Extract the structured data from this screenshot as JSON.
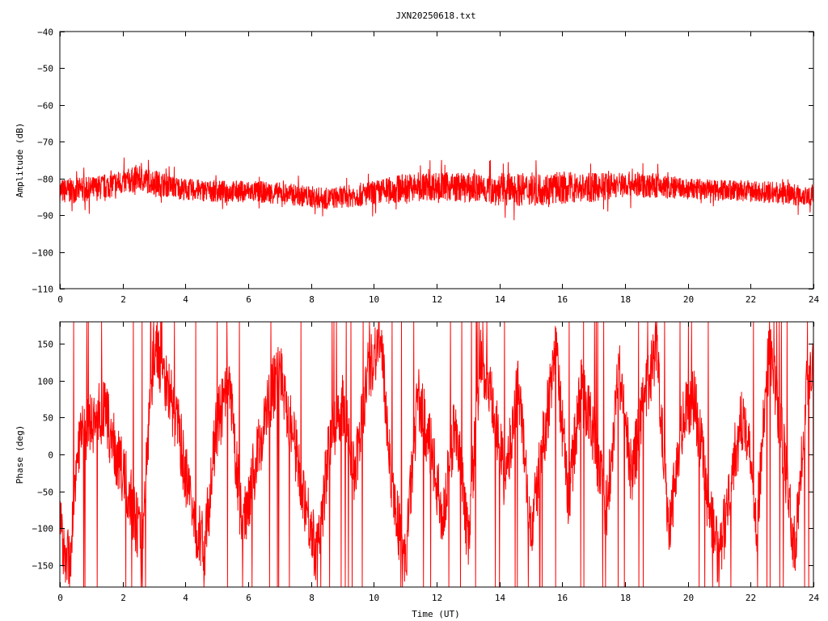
{
  "title": "JXN20250618.txt",
  "chart_data": [
    {
      "type": "line",
      "ylabel": "Amplitude (dB)",
      "xlabel": "",
      "xlim": [
        0,
        24
      ],
      "ylim": [
        -110,
        -40
      ],
      "x_ticks": [
        0,
        2,
        4,
        6,
        8,
        10,
        12,
        14,
        16,
        18,
        20,
        22,
        24
      ],
      "y_ticks": [
        -110,
        -100,
        -90,
        -80,
        -70,
        -60,
        -50,
        -40
      ],
      "y_tick_labels": [
        "−110",
        "−100",
        "−90",
        "−80",
        "−70",
        "−60",
        "−50",
        "−40"
      ],
      "grid": false,
      "color": "#ff0000",
      "series": [
        {
          "envelope": {
            "x": [
              0,
              1,
              2,
              2.5,
              3,
              4,
              5,
              6,
              7,
              8,
              8.5,
              9,
              10,
              11,
              12,
              13,
              14,
              15,
              16,
              17,
              18,
              19,
              20,
              21,
              22,
              23,
              23.2,
              23.5,
              24
            ],
            "center": [
              -83.5,
              -83,
              -81,
              -80,
              -81,
              -83,
              -83.5,
              -83.5,
              -84,
              -85,
              -85.5,
              -85,
              -84,
              -82.5,
              -82,
              -82.5,
              -83,
              -83,
              -82.5,
              -82.5,
              -81.5,
              -82,
              -83,
              -83,
              -83.5,
              -84,
              -84,
              -84.5,
              -84.5
            ],
            "spread": [
              3.5,
              3.5,
              3.5,
              3.5,
              3.5,
              3,
              3,
              3,
              3,
              3,
              3,
              3,
              3.5,
              4,
              4,
              4,
              4.5,
              4.5,
              4.5,
              4,
              3.5,
              3.5,
              3,
              3,
              3,
              3,
              3,
              3,
              3
            ]
          }
        }
      ]
    },
    {
      "type": "line",
      "ylabel": "Phase (deg)",
      "xlabel": "Time (UT)",
      "xlim": [
        0,
        24
      ],
      "ylim": [
        -180,
        180
      ],
      "x_ticks": [
        0,
        2,
        4,
        6,
        8,
        10,
        12,
        14,
        16,
        18,
        20,
        22,
        24
      ],
      "y_ticks": [
        -150,
        -100,
        -50,
        0,
        50,
        100,
        150
      ],
      "y_tick_labels": [
        "−150",
        "−100",
        "−50",
        "0",
        "50",
        "100",
        "150"
      ],
      "grid": false,
      "color": "#ff0000",
      "series": [
        {
          "x": [
            0,
            0.3,
            0.6,
            1,
            1.4,
            1.8,
            2.2,
            2.6,
            3,
            3.4,
            3.8,
            4.2,
            4.6,
            5,
            5.4,
            5.8,
            6.2,
            6.6,
            7,
            7.4,
            7.8,
            8.2,
            8.6,
            9,
            9.4,
            9.8,
            10.2,
            10.6,
            11,
            11.4,
            11.8,
            12.2,
            12.6,
            13,
            13.4,
            13.8,
            14.2,
            14.6,
            15,
            15.4,
            15.8,
            16.2,
            16.6,
            17,
            17.4,
            17.8,
            18.2,
            18.6,
            19,
            19.4,
            19.8,
            20.2,
            20.6,
            21,
            21.4,
            21.8,
            22.2,
            22.6,
            23,
            23.4,
            23.8,
            24
          ],
          "y": [
            -100,
            -150,
            20,
            40,
            60,
            0,
            -50,
            -120,
            150,
            100,
            30,
            -80,
            -130,
            40,
            90,
            -100,
            -20,
            60,
            120,
            30,
            -60,
            -140,
            20,
            70,
            -30,
            110,
            160,
            -50,
            -150,
            80,
            10,
            -90,
            50,
            -120,
            130,
            60,
            -40,
            100,
            -110,
            20,
            140,
            -60,
            90,
            30,
            -80,
            120,
            -30,
            70,
            150,
            -100,
            40,
            80,
            -50,
            -150,
            -20,
            60,
            -90,
            150,
            20,
            -130,
            100,
            130
          ]
        }
      ]
    }
  ]
}
